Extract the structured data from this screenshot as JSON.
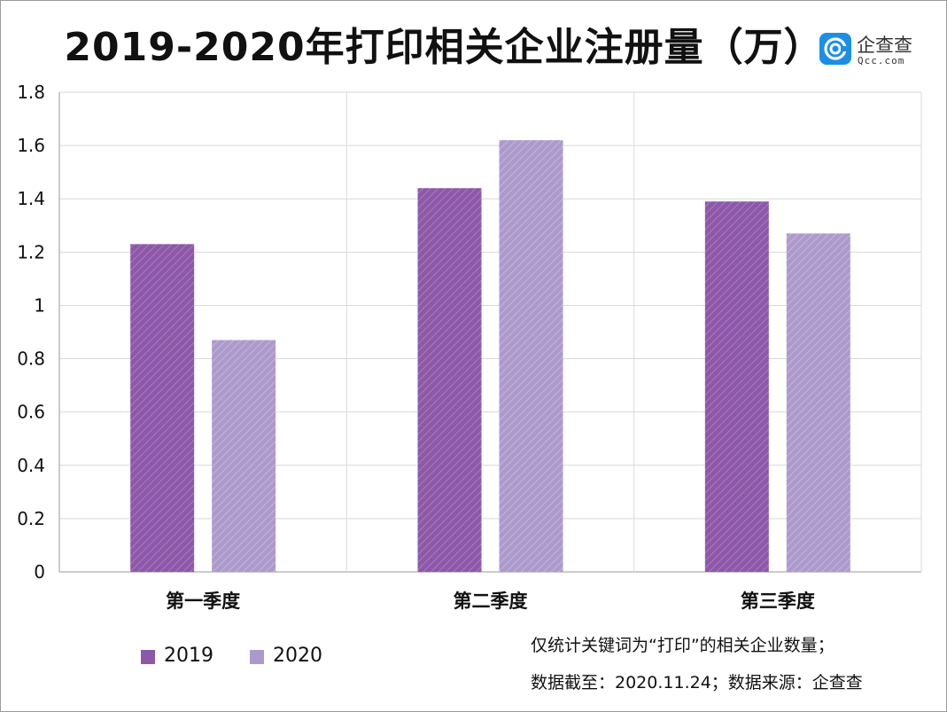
{
  "chart_data": {
    "type": "bar",
    "title": "2019-2020年打印相关企业注册量（万）",
    "categories": [
      "第一季度",
      "第二季度",
      "第三季度"
    ],
    "series": [
      {
        "name": "2019",
        "values": [
          1.23,
          1.44,
          1.39
        ],
        "color": "#8e58a8"
      },
      {
        "name": "2020",
        "values": [
          0.87,
          1.62,
          1.27
        ],
        "color": "#ad9acc"
      }
    ],
    "ylim": [
      0,
      1.8
    ],
    "yticks": [
      "0",
      "0.2",
      "0.4",
      "0.6",
      "0.8",
      "1",
      "1.2",
      "1.4",
      "1.6",
      "1.8"
    ],
    "grid": true,
    "legend_position": "bottom-left"
  },
  "brand": {
    "name": "企查查",
    "url": "Qcc.com",
    "icon": "qcc-logo-icon",
    "color": "#1b8fe6"
  },
  "notes": {
    "line1": "仅统计关键词为“打印”的相关企业数量；",
    "line2": "数据截至：2020.11.24；数据来源：企查查"
  }
}
